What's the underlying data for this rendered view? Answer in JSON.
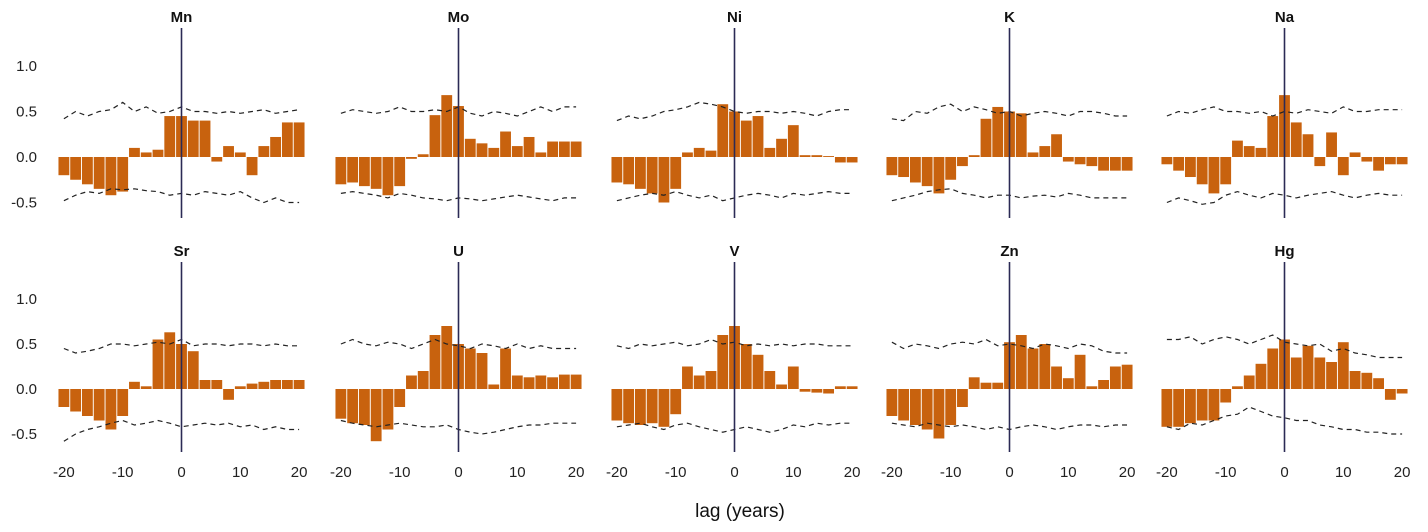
{
  "chart_data": {
    "type": "bar",
    "xlabel": "lag (years)",
    "x_ticks": [
      -20,
      -10,
      0,
      10,
      20
    ],
    "y_ticks": [
      1.0,
      0.5,
      0.0,
      -0.5
    ],
    "y_tick_labels": [
      "1.0",
      "0.5",
      "0.0",
      "-0.5"
    ],
    "xlim": [
      -21,
      21
    ],
    "ylim": [
      -0.7,
      1.45
    ],
    "lags": [
      -20,
      -18,
      -16,
      -14,
      -12,
      -10,
      -8,
      -6,
      -4,
      -2,
      0,
      2,
      4,
      6,
      8,
      10,
      12,
      14,
      16,
      18,
      20
    ],
    "bar_color": "#c8620e",
    "zero_line_color": "#2b2a55",
    "grid": false,
    "panels": [
      {
        "title": "Mn",
        "values": [
          -0.2,
          -0.25,
          -0.3,
          -0.35,
          -0.42,
          -0.38,
          0.1,
          0.05,
          0.08,
          0.45,
          0.45,
          0.4,
          0.4,
          -0.05,
          0.12,
          0.05,
          -0.2,
          0.12,
          0.22,
          0.38,
          0.38
        ],
        "upper": [
          0.42,
          0.5,
          0.45,
          0.5,
          0.52,
          0.6,
          0.5,
          0.55,
          0.48,
          0.5,
          0.55,
          0.5,
          0.5,
          0.48,
          0.5,
          0.48,
          0.5,
          0.52,
          0.48,
          0.5,
          0.52
        ],
        "lower": [
          -0.48,
          -0.42,
          -0.38,
          -0.4,
          -0.35,
          -0.36,
          -0.35,
          -0.37,
          -0.38,
          -0.42,
          -0.4,
          -0.42,
          -0.38,
          -0.4,
          -0.42,
          -0.38,
          -0.45,
          -0.5,
          -0.45,
          -0.5,
          -0.5
        ]
      },
      {
        "title": "Mo",
        "values": [
          -0.3,
          -0.28,
          -0.32,
          -0.35,
          -0.42,
          -0.32,
          -0.02,
          0.03,
          0.46,
          0.68,
          0.56,
          0.2,
          0.15,
          0.1,
          0.28,
          0.12,
          0.22,
          0.05,
          0.17,
          0.17,
          0.17
        ],
        "upper": [
          0.48,
          0.52,
          0.5,
          0.48,
          0.5,
          0.55,
          0.5,
          0.5,
          0.52,
          0.5,
          0.55,
          0.48,
          0.45,
          0.5,
          0.48,
          0.45,
          0.5,
          0.55,
          0.5,
          0.55,
          0.55
        ],
        "lower": [
          -0.4,
          -0.38,
          -0.4,
          -0.42,
          -0.45,
          -0.4,
          -0.42,
          -0.45,
          -0.46,
          -0.48,
          -0.45,
          -0.46,
          -0.48,
          -0.46,
          -0.44,
          -0.42,
          -0.44,
          -0.46,
          -0.48,
          -0.45,
          -0.45
        ]
      },
      {
        "title": "Ni",
        "values": [
          -0.28,
          -0.3,
          -0.35,
          -0.4,
          -0.5,
          -0.35,
          0.05,
          0.1,
          0.07,
          0.58,
          0.5,
          0.4,
          0.45,
          0.1,
          0.2,
          0.35,
          0.02,
          0.02,
          0.01,
          -0.06,
          -0.06
        ],
        "upper": [
          0.4,
          0.45,
          0.42,
          0.45,
          0.5,
          0.52,
          0.55,
          0.6,
          0.58,
          0.55,
          0.5,
          0.48,
          0.5,
          0.5,
          0.48,
          0.5,
          0.48,
          0.45,
          0.5,
          0.52,
          0.52
        ],
        "lower": [
          -0.48,
          -0.45,
          -0.42,
          -0.4,
          -0.42,
          -0.38,
          -0.42,
          -0.45,
          -0.42,
          -0.48,
          -0.45,
          -0.42,
          -0.4,
          -0.42,
          -0.45,
          -0.4,
          -0.42,
          -0.4,
          -0.38,
          -0.4,
          -0.4
        ]
      },
      {
        "title": "K",
        "values": [
          -0.2,
          -0.22,
          -0.28,
          -0.32,
          -0.4,
          -0.25,
          -0.1,
          0.02,
          0.42,
          0.55,
          0.5,
          0.48,
          0.05,
          0.12,
          0.25,
          -0.05,
          -0.08,
          -0.1,
          -0.15,
          -0.15,
          -0.15
        ],
        "upper": [
          0.42,
          0.4,
          0.5,
          0.48,
          0.55,
          0.58,
          0.5,
          0.55,
          0.52,
          0.48,
          0.5,
          0.45,
          0.48,
          0.5,
          0.48,
          0.45,
          0.5,
          0.5,
          0.48,
          0.45,
          0.45
        ],
        "lower": [
          -0.48,
          -0.45,
          -0.42,
          -0.38,
          -0.36,
          -0.35,
          -0.4,
          -0.42,
          -0.45,
          -0.42,
          -0.42,
          -0.45,
          -0.43,
          -0.42,
          -0.44,
          -0.4,
          -0.42,
          -0.45,
          -0.45,
          -0.45,
          -0.45
        ]
      },
      {
        "title": "Na",
        "values": [
          -0.08,
          -0.15,
          -0.22,
          -0.3,
          -0.4,
          -0.3,
          0.18,
          0.12,
          0.1,
          0.45,
          0.68,
          0.38,
          0.25,
          -0.1,
          0.27,
          -0.2,
          0.05,
          -0.05,
          -0.15,
          -0.08,
          -0.08
        ],
        "upper": [
          0.45,
          0.5,
          0.48,
          0.52,
          0.55,
          0.5,
          0.5,
          0.48,
          0.5,
          0.45,
          0.5,
          0.48,
          0.52,
          0.5,
          0.48,
          0.55,
          0.5,
          0.5,
          0.52,
          0.52,
          0.52
        ],
        "lower": [
          -0.5,
          -0.45,
          -0.48,
          -0.52,
          -0.5,
          -0.42,
          -0.38,
          -0.42,
          -0.45,
          -0.4,
          -0.42,
          -0.45,
          -0.42,
          -0.4,
          -0.38,
          -0.42,
          -0.45,
          -0.42,
          -0.4,
          -0.42,
          -0.42
        ]
      },
      {
        "title": "Sr",
        "values": [
          -0.2,
          -0.25,
          -0.3,
          -0.35,
          -0.45,
          -0.3,
          0.08,
          0.03,
          0.55,
          0.63,
          0.5,
          0.42,
          0.1,
          0.1,
          -0.12,
          0.03,
          0.06,
          0.08,
          0.1,
          0.1,
          0.1
        ],
        "upper": [
          0.45,
          0.4,
          0.42,
          0.45,
          0.5,
          0.5,
          0.48,
          0.5,
          0.52,
          0.5,
          0.55,
          0.48,
          0.5,
          0.5,
          0.48,
          0.5,
          0.5,
          0.48,
          0.5,
          0.48,
          0.48
        ],
        "lower": [
          -0.58,
          -0.5,
          -0.45,
          -0.42,
          -0.38,
          -0.35,
          -0.4,
          -0.38,
          -0.35,
          -0.38,
          -0.42,
          -0.4,
          -0.38,
          -0.4,
          -0.38,
          -0.42,
          -0.4,
          -0.45,
          -0.42,
          -0.45,
          -0.45
        ]
      },
      {
        "title": "U",
        "values": [
          -0.33,
          -0.38,
          -0.4,
          -0.58,
          -0.45,
          -0.2,
          0.15,
          0.2,
          0.6,
          0.7,
          0.5,
          0.45,
          0.4,
          0.05,
          0.45,
          0.15,
          0.13,
          0.15,
          0.13,
          0.16,
          0.16
        ],
        "upper": [
          0.5,
          0.55,
          0.5,
          0.48,
          0.52,
          0.5,
          0.45,
          0.5,
          0.55,
          0.5,
          0.48,
          0.45,
          0.5,
          0.48,
          0.45,
          0.5,
          0.45,
          0.48,
          0.45,
          0.45,
          0.45
        ],
        "lower": [
          -0.35,
          -0.38,
          -0.4,
          -0.42,
          -0.4,
          -0.38,
          -0.4,
          -0.42,
          -0.42,
          -0.4,
          -0.45,
          -0.48,
          -0.5,
          -0.48,
          -0.45,
          -0.42,
          -0.4,
          -0.4,
          -0.38,
          -0.38,
          -0.38
        ],
        "values_offset_note": ""
      },
      {
        "title": "V",
        "values": [
          -0.35,
          -0.38,
          -0.4,
          -0.38,
          -0.42,
          -0.28,
          0.25,
          0.15,
          0.2,
          0.6,
          0.7,
          0.5,
          0.38,
          0.2,
          0.05,
          0.25,
          -0.03,
          -0.04,
          -0.05,
          0.03,
          0.03
        ],
        "upper": [
          0.48,
          0.45,
          0.5,
          0.48,
          0.5,
          0.52,
          0.48,
          0.5,
          0.55,
          0.5,
          0.52,
          0.48,
          0.5,
          0.48,
          0.5,
          0.48,
          0.5,
          0.5,
          0.48,
          0.48,
          0.48
        ],
        "lower": [
          -0.42,
          -0.4,
          -0.38,
          -0.42,
          -0.45,
          -0.4,
          -0.38,
          -0.42,
          -0.45,
          -0.48,
          -0.45,
          -0.42,
          -0.45,
          -0.48,
          -0.45,
          -0.4,
          -0.42,
          -0.38,
          -0.4,
          -0.38,
          -0.38
        ]
      },
      {
        "title": "Zn",
        "values": [
          -0.3,
          -0.35,
          -0.4,
          -0.45,
          -0.55,
          -0.4,
          -0.2,
          0.13,
          0.07,
          0.07,
          0.52,
          0.6,
          0.45,
          0.5,
          0.25,
          0.12,
          0.38,
          0.03,
          0.1,
          0.25,
          0.27
        ],
        "upper": [
          0.52,
          0.45,
          0.5,
          0.48,
          0.45,
          0.5,
          0.52,
          0.5,
          0.55,
          0.48,
          0.5,
          0.48,
          0.45,
          0.5,
          0.48,
          0.45,
          0.5,
          0.48,
          0.42,
          0.4,
          0.4
        ],
        "lower": [
          -0.38,
          -0.4,
          -0.42,
          -0.38,
          -0.4,
          -0.42,
          -0.4,
          -0.42,
          -0.45,
          -0.42,
          -0.45,
          -0.42,
          -0.4,
          -0.42,
          -0.45,
          -0.42,
          -0.4,
          -0.4,
          -0.42,
          -0.4,
          -0.4
        ]
      },
      {
        "title": "Hg",
        "values": [
          -0.42,
          -0.42,
          -0.38,
          -0.35,
          -0.35,
          -0.15,
          0.03,
          0.15,
          0.28,
          0.45,
          0.55,
          0.35,
          0.48,
          0.35,
          0.3,
          0.52,
          0.2,
          0.18,
          0.12,
          -0.12,
          -0.05
        ],
        "upper": [
          0.55,
          0.55,
          0.58,
          0.5,
          0.55,
          0.58,
          0.55,
          0.5,
          0.55,
          0.6,
          0.52,
          0.5,
          0.48,
          0.5,
          0.42,
          0.45,
          0.4,
          0.38,
          0.35,
          0.35,
          0.35
        ],
        "lower": [
          -0.42,
          -0.45,
          -0.38,
          -0.4,
          -0.35,
          -0.3,
          -0.28,
          -0.2,
          -0.25,
          -0.3,
          -0.32,
          -0.35,
          -0.35,
          -0.4,
          -0.42,
          -0.45,
          -0.45,
          -0.48,
          -0.48,
          -0.5,
          -0.5
        ]
      }
    ]
  }
}
